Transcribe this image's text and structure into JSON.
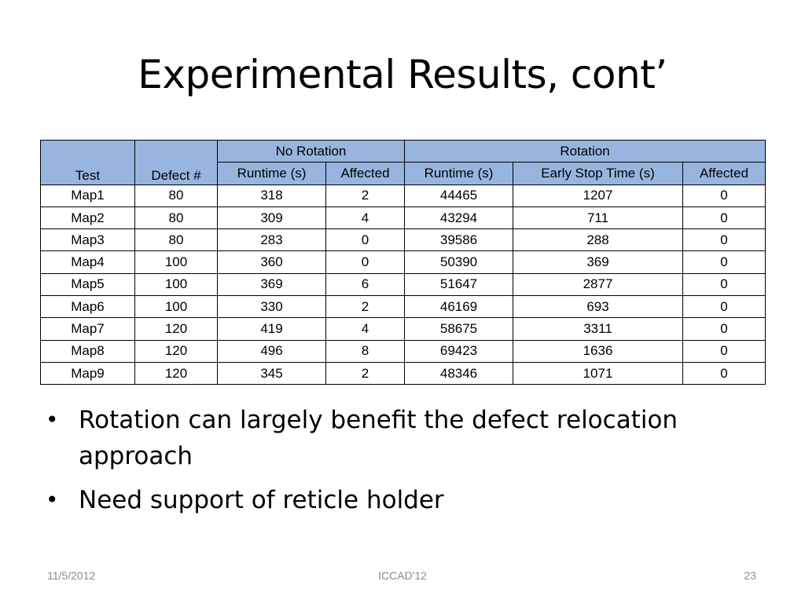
{
  "slide": {
    "title": "Experimental Results, cont’",
    "bullets": [
      "Rotation can largely benefit the defect relocation approach",
      "Need support of reticle holder"
    ],
    "footer": {
      "date": "11/5/2012",
      "conference": "ICCAD'12",
      "page": "23"
    }
  },
  "table": {
    "group_headers": {
      "no_rotation": "No Rotation",
      "rotation": "Rotation"
    },
    "columns": {
      "test": "Test",
      "defect": "Defect #",
      "nr_runtime": "Runtime (s)",
      "nr_affected": "Affected",
      "r_runtime": "Runtime (s)",
      "r_early_stop": "Early Stop Time (s)",
      "r_affected": "Affected"
    },
    "rows": [
      [
        "Map1",
        "80",
        "318",
        "2",
        "44465",
        "1207",
        "0"
      ],
      [
        "Map2",
        "80",
        "309",
        "4",
        "43294",
        "711",
        "0"
      ],
      [
        "Map3",
        "80",
        "283",
        "0",
        "39586",
        "288",
        "0"
      ],
      [
        "Map4",
        "100",
        "360",
        "0",
        "50390",
        "369",
        "0"
      ],
      [
        "Map5",
        "100",
        "369",
        "6",
        "51647",
        "2877",
        "0"
      ],
      [
        "Map6",
        "100",
        "330",
        "2",
        "46169",
        "693",
        "0"
      ],
      [
        "Map7",
        "120",
        "419",
        "4",
        "58675",
        "3311",
        "0"
      ],
      [
        "Map8",
        "120",
        "496",
        "8",
        "69423",
        "1636",
        "0"
      ],
      [
        "Map9",
        "120",
        "345",
        "2",
        "48346",
        "1071",
        "0"
      ]
    ],
    "header_color": "#98b5e0"
  }
}
